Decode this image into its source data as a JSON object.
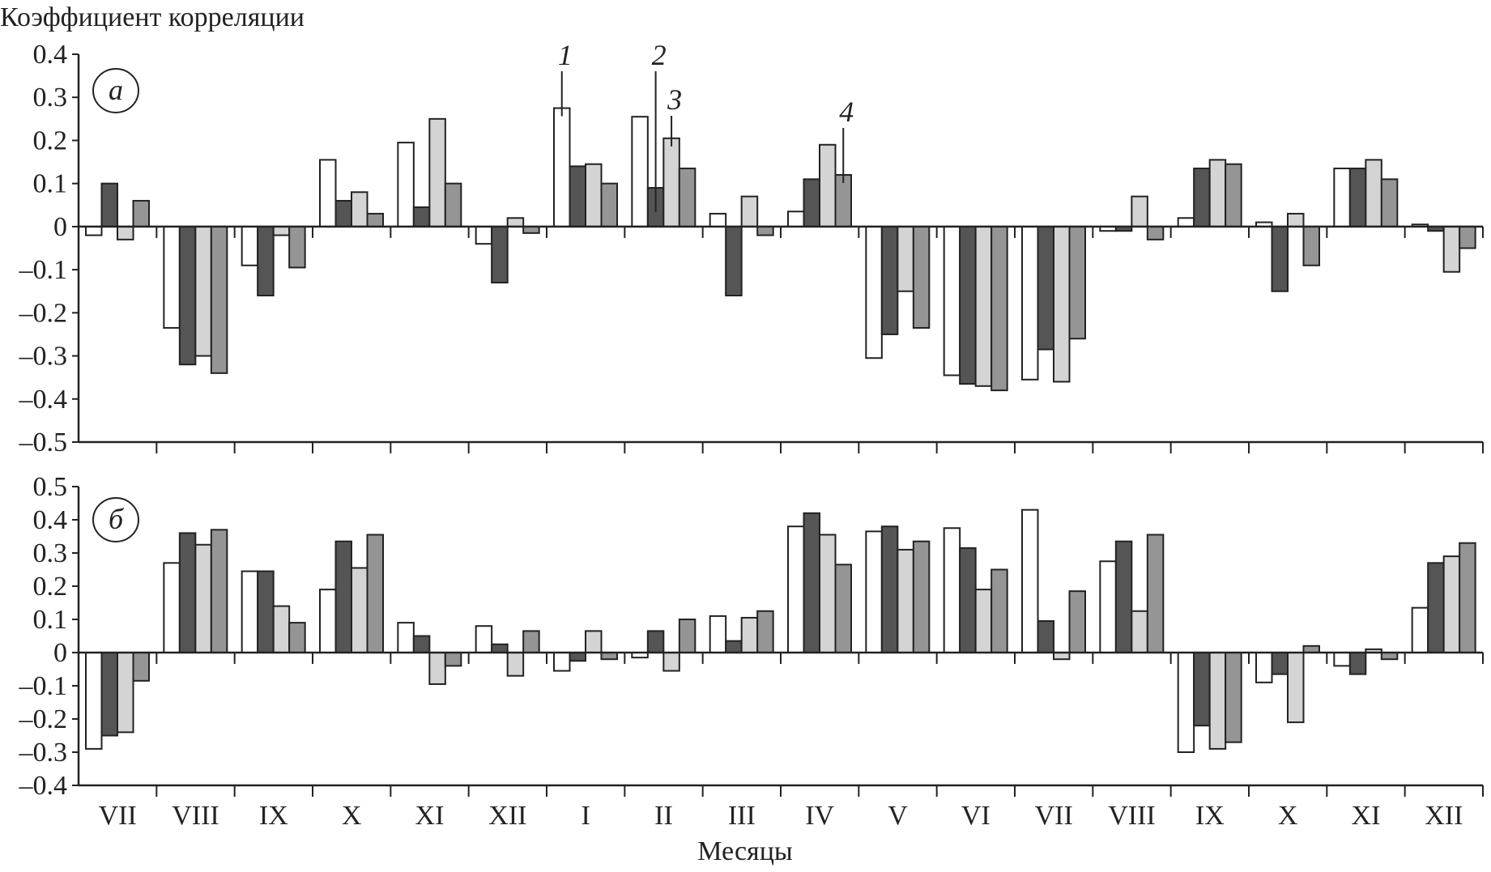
{
  "chart_data": [
    {
      "type": "bar",
      "panel_label": "а",
      "ylabel": "Коэффициент корреляции",
      "xlabel": "",
      "ylim": [
        -0.5,
        0.4
      ],
      "yticks": [
        "0.4",
        "0.3",
        "0.2",
        "0.1",
        "0",
        "-0.1",
        "-0.2",
        "-0.3",
        "-0.4",
        "-0.5"
      ],
      "grid": false,
      "categories": [
        "VII",
        "VIII",
        "IX",
        "X",
        "XI",
        "XII",
        "I",
        "II",
        "III",
        "IV",
        "V",
        "VI",
        "VII",
        "VIII",
        "IX",
        "X",
        "XI",
        "XII"
      ],
      "series": [
        {
          "name": "1",
          "color": "#ffffff",
          "values": [
            -0.02,
            -0.235,
            -0.09,
            0.155,
            0.195,
            -0.04,
            0.275,
            0.255,
            0.03,
            0.035,
            -0.305,
            -0.345,
            -0.355,
            -0.01,
            0.02,
            0.01,
            0.135,
            0.005
          ]
        },
        {
          "name": "2",
          "color": "#555555",
          "values": [
            0.1,
            -0.32,
            -0.16,
            0.06,
            0.045,
            -0.13,
            0.14,
            0.09,
            -0.16,
            0.11,
            -0.25,
            -0.365,
            -0.285,
            -0.01,
            0.135,
            -0.15,
            0.135,
            -0.01
          ]
        },
        {
          "name": "3",
          "color": "#d4d4d4",
          "values": [
            -0.03,
            -0.3,
            -0.02,
            0.08,
            0.25,
            0.02,
            0.145,
            0.205,
            0.07,
            0.19,
            -0.15,
            -0.37,
            -0.36,
            0.07,
            0.155,
            0.03,
            0.155,
            -0.105
          ]
        },
        {
          "name": "4",
          "color": "#959595",
          "values": [
            0.06,
            -0.34,
            -0.095,
            0.03,
            0.1,
            -0.015,
            0.1,
            0.135,
            -0.02,
            0.12,
            -0.235,
            -0.38,
            -0.26,
            -0.03,
            0.145,
            -0.09,
            0.11,
            -0.05
          ]
        }
      ],
      "annotations": [
        {
          "text": "1",
          "category_index": 6,
          "series_index": 0
        },
        {
          "text": "2",
          "category_index": 7,
          "series_index": 1
        },
        {
          "text": "3",
          "category_index": 7,
          "series_index": 2
        },
        {
          "text": "4",
          "category_index": 9,
          "series_index": 3
        }
      ]
    },
    {
      "type": "bar",
      "panel_label": "б",
      "xlabel": "Месяцы",
      "ylim": [
        -0.4,
        0.5
      ],
      "yticks": [
        "0.5",
        "0.4",
        "0.3",
        "0.2",
        "0.1",
        "0",
        "-0.1",
        "-0.2",
        "-0.3",
        "-0.4"
      ],
      "grid": false,
      "categories": [
        "VII",
        "VIII",
        "IX",
        "X",
        "XI",
        "XII",
        "I",
        "II",
        "III",
        "IV",
        "V",
        "VI",
        "VII",
        "VIII",
        "IX",
        "X",
        "XI",
        "XII"
      ],
      "series": [
        {
          "color": "#ffffff",
          "values": [
            -0.29,
            0.27,
            0.245,
            0.19,
            0.09,
            0.08,
            -0.055,
            -0.015,
            0.11,
            0.38,
            0.365,
            0.375,
            0.43,
            0.275,
            -0.3,
            -0.09,
            -0.04,
            0.135
          ]
        },
        {
          "color": "#555555",
          "values": [
            -0.25,
            0.36,
            0.245,
            0.335,
            0.05,
            0.025,
            -0.025,
            0.065,
            0.035,
            0.42,
            0.38,
            0.315,
            0.095,
            0.335,
            -0.22,
            -0.065,
            -0.065,
            0.27
          ]
        },
        {
          "color": "#d4d4d4",
          "values": [
            -0.24,
            0.325,
            0.14,
            0.255,
            -0.095,
            -0.07,
            0.065,
            -0.055,
            0.105,
            0.355,
            0.31,
            0.19,
            -0.02,
            0.125,
            -0.29,
            -0.21,
            0.01,
            0.29
          ]
        },
        {
          "color": "#959595",
          "values": [
            -0.085,
            0.37,
            0.09,
            0.355,
            -0.04,
            0.065,
            -0.02,
            0.1,
            0.125,
            0.265,
            0.335,
            0.25,
            0.185,
            0.355,
            -0.27,
            0.02,
            -0.02,
            0.33
          ]
        }
      ]
    }
  ]
}
